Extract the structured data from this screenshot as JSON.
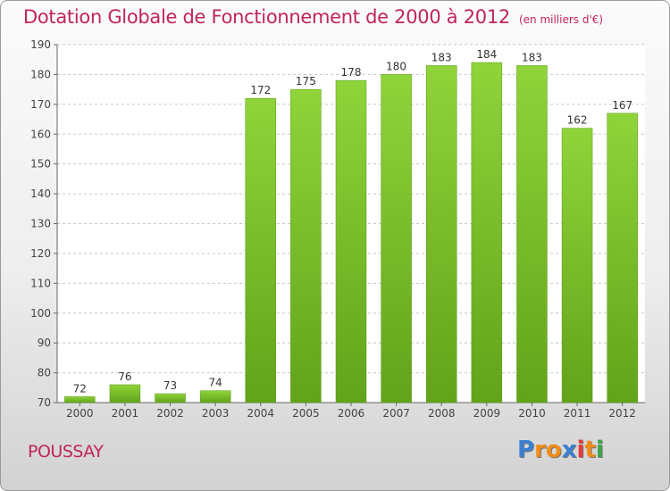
{
  "title": "Dotation Globale de Fonctionnement de 2000 à 2012",
  "subtitle": "(en milliers d'€)",
  "commune": "POUSSAY",
  "logo": {
    "text": "Proxiti",
    "letters": [
      "P",
      "r",
      "o",
      "x",
      "i",
      "t",
      "i"
    ],
    "colors": [
      "#3a7fd0",
      "#f08c1a",
      "#f08c1a",
      "#3a7fd0",
      "#e83a3a",
      "#f08c1a",
      "#3aa84a"
    ]
  },
  "chart_data": {
    "type": "bar",
    "categories": [
      "2000",
      "2001",
      "2002",
      "2003",
      "2004",
      "2005",
      "2006",
      "2007",
      "2008",
      "2009",
      "2010",
      "2011",
      "2012"
    ],
    "values": [
      72,
      76,
      73,
      74,
      172,
      175,
      178,
      180,
      183,
      184,
      183,
      162,
      167
    ],
    "ylim": [
      70,
      190
    ],
    "yticks": [
      70,
      80,
      90,
      100,
      110,
      120,
      130,
      140,
      150,
      160,
      170,
      180,
      190
    ],
    "grid": true,
    "bar_color": "#7cc22e",
    "xlabel": "",
    "ylabel": ""
  }
}
